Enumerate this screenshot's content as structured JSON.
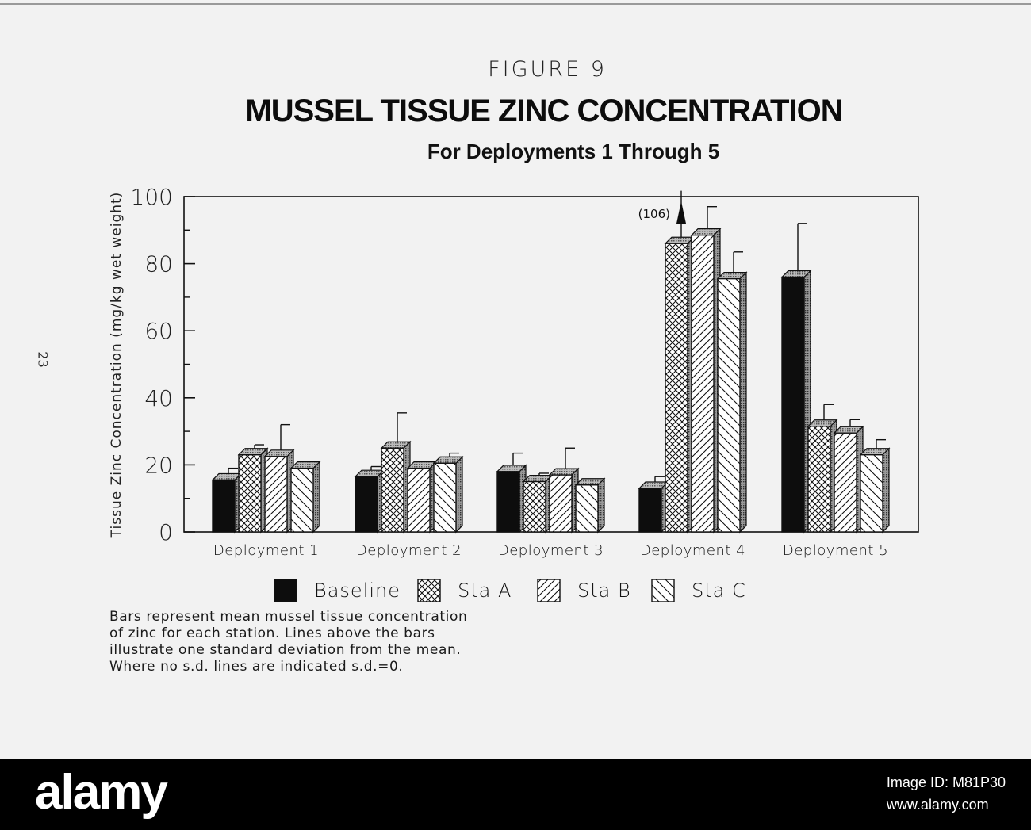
{
  "page": {
    "page_number": "23",
    "figure_label": "FIGURE 9",
    "title": "MUSSEL TISSUE ZINC CONCENTRATION",
    "subtitle": "For Deployments 1 Through 5"
  },
  "caption": [
    "Bars represent mean mussel tissue concentration",
    "of zinc for each station. Lines above the bars",
    "illustrate one standard deviation from the mean.",
    "Where no s.d. lines are indicated s.d.=0."
  ],
  "watermark": {
    "brand": "alamy",
    "image_id": "Image ID: M81P30",
    "url": "www.alamy.com"
  },
  "chart_data": {
    "type": "bar",
    "title": "MUSSEL TISSUE ZINC CONCENTRATION",
    "subtitle": "For Deployments 1 Through 5",
    "xlabel": "",
    "ylabel": "Tissue Zinc Concentration (mg/kg wet weight)",
    "ylim": [
      0,
      100
    ],
    "yticks": [
      0,
      20,
      40,
      60,
      80,
      100
    ],
    "categories": [
      "Deployment 1",
      "Deployment 2",
      "Deployment 3",
      "Deployment 4",
      "Deployment 5"
    ],
    "series": [
      {
        "name": "Baseline",
        "pattern": "solid",
        "values": [
          15.5,
          16.5,
          18,
          13,
          76
        ],
        "sd_top": [
          19,
          19.5,
          23.5,
          16.5,
          92
        ]
      },
      {
        "name": "Sta A",
        "pattern": "crosshatch",
        "values": [
          23,
          25,
          15,
          86,
          31.5
        ],
        "sd_top": [
          26,
          35.5,
          17.5,
          106,
          38
        ]
      },
      {
        "name": "Sta B",
        "pattern": "forward-diagonal",
        "values": [
          22.5,
          19,
          17,
          88.5,
          29.5
        ],
        "sd_top": [
          32,
          21,
          25,
          97,
          33.5
        ]
      },
      {
        "name": "Sta C",
        "pattern": "backward-diagonal",
        "values": [
          19,
          20.5,
          14,
          75.5,
          23
        ],
        "sd_top": [
          19,
          23.5,
          14,
          83.5,
          27.5
        ]
      }
    ],
    "annotations": [
      {
        "text": "(106)",
        "category": "Deployment 4",
        "series": "Sta A",
        "value": 106,
        "arrow": "up"
      }
    ],
    "legend": {
      "position": "bottom",
      "entries": [
        "Baseline",
        "Sta A",
        "Sta B",
        "Sta C"
      ]
    },
    "grid": false
  }
}
